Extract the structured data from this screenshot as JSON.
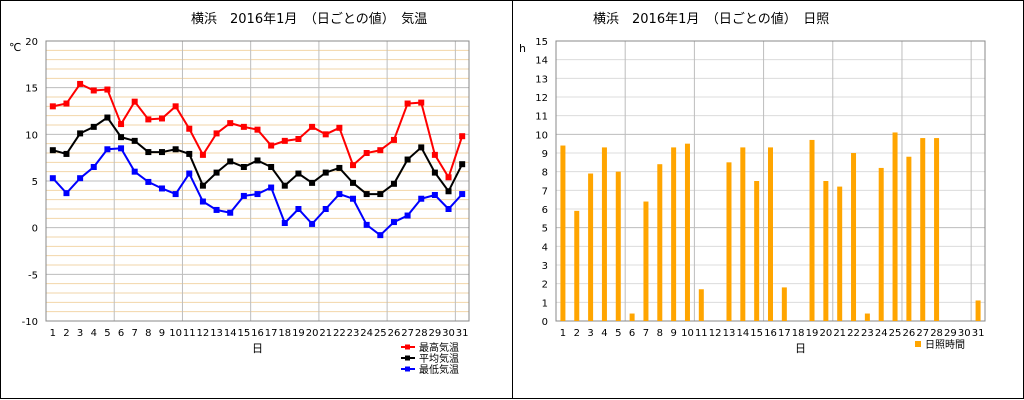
{
  "chart_data": [
    {
      "type": "line",
      "title": "横浜　2016年1月　（日ごとの値）　気温",
      "ylabel": "℃",
      "xlabel": "日",
      "ylim": [
        -10,
        20
      ],
      "yticks": [
        "-10",
        "-5",
        "0",
        "5",
        "10",
        "15",
        "20"
      ],
      "categories": [
        "1",
        "2",
        "3",
        "4",
        "5",
        "6",
        "7",
        "8",
        "9",
        "10",
        "11",
        "12",
        "13",
        "14",
        "15",
        "16",
        "17",
        "18",
        "19",
        "20",
        "21",
        "22",
        "23",
        "24",
        "25",
        "26",
        "27",
        "28",
        "29",
        "30",
        "31"
      ],
      "grid": true,
      "legend_position": "bottom-right",
      "series": [
        {
          "name": "最高気温",
          "color": "#ff0000",
          "values": [
            13.0,
            13.3,
            15.4,
            14.7,
            14.8,
            11.1,
            13.5,
            11.6,
            11.7,
            13.0,
            10.6,
            7.8,
            10.1,
            11.2,
            10.8,
            10.5,
            8.8,
            9.3,
            9.5,
            10.8,
            10.0,
            10.7,
            6.7,
            8.0,
            8.3,
            9.4,
            13.3,
            13.4,
            7.8,
            5.4,
            9.8
          ]
        },
        {
          "name": "平均気温",
          "color": "#000000",
          "values": [
            8.3,
            7.9,
            10.1,
            10.8,
            11.8,
            9.7,
            9.3,
            8.1,
            8.1,
            8.4,
            7.9,
            4.5,
            5.9,
            7.1,
            6.5,
            7.2,
            6.5,
            4.5,
            5.8,
            4.8,
            5.9,
            6.4,
            4.8,
            3.6,
            3.6,
            4.7,
            7.3,
            8.6,
            5.9,
            3.9,
            6.8
          ]
        },
        {
          "name": "最低気温",
          "color": "#0000ff",
          "values": [
            5.3,
            3.7,
            5.3,
            6.5,
            8.4,
            8.5,
            6.0,
            4.9,
            4.2,
            3.6,
            5.8,
            2.8,
            1.9,
            1.6,
            3.4,
            3.6,
            4.3,
            0.5,
            2.0,
            0.4,
            2.0,
            3.6,
            3.1,
            0.3,
            -0.8,
            0.6,
            1.3,
            3.1,
            3.5,
            2.0,
            3.6
          ]
        }
      ]
    },
    {
      "type": "bar",
      "title": "横浜　2016年1月　（日ごとの値）　日照",
      "ylabel": "h",
      "xlabel": "日",
      "ylim": [
        0,
        15
      ],
      "yticks": [
        "0",
        "1",
        "2",
        "3",
        "4",
        "5",
        "6",
        "7",
        "8",
        "9",
        "10",
        "11",
        "12",
        "13",
        "14",
        "15"
      ],
      "categories": [
        "1",
        "2",
        "3",
        "4",
        "5",
        "6",
        "7",
        "8",
        "9",
        "10",
        "11",
        "12",
        "13",
        "14",
        "15",
        "16",
        "17",
        "18",
        "19",
        "20",
        "21",
        "22",
        "23",
        "24",
        "25",
        "26",
        "27",
        "28",
        "29",
        "30",
        "31"
      ],
      "grid": true,
      "legend_position": "bottom-right",
      "series": [
        {
          "name": "日照時間",
          "color": "#ffa500",
          "values": [
            9.4,
            5.9,
            7.9,
            9.3,
            8.0,
            0.4,
            6.4,
            8.4,
            9.3,
            9.5,
            1.7,
            0,
            8.5,
            9.3,
            7.5,
            9.3,
            1.8,
            0,
            9.7,
            7.5,
            7.2,
            9.0,
            0.4,
            8.2,
            10.1,
            8.8,
            9.8,
            9.8,
            0,
            0,
            1.1
          ]
        }
      ]
    }
  ]
}
